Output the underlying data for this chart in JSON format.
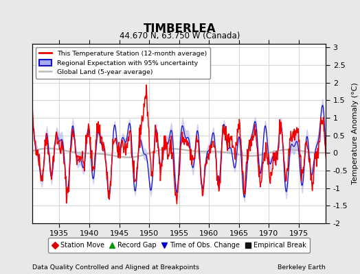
{
  "title": "TIMBERLEA",
  "subtitle": "44.670 N, 63.750 W (Canada)",
  "ylabel": "Temperature Anomaly (°C)",
  "xlabel_footer": "Data Quality Controlled and Aligned at Breakpoints",
  "footer_right": "Berkeley Earth",
  "ylim": [
    -2.0,
    3.1
  ],
  "xlim": [
    1930.5,
    1979.5
  ],
  "xticks": [
    1935,
    1940,
    1945,
    1950,
    1955,
    1960,
    1965,
    1970,
    1975
  ],
  "yticks": [
    -2,
    -1.5,
    -1,
    -0.5,
    0,
    0.5,
    1,
    1.5,
    2,
    2.5,
    3
  ],
  "bg_color": "#e8e8e8",
  "plot_bg_color": "#ffffff",
  "red_color": "#ee0000",
  "blue_color": "#1111cc",
  "blue_fill_color": "#aaaaee",
  "gray_color": "#bbbbbb",
  "marker_legend": [
    {
      "label": "Station Move",
      "marker": "D",
      "color": "#dd0000"
    },
    {
      "label": "Record Gap",
      "marker": "^",
      "color": "#009900"
    },
    {
      "label": "Time of Obs. Change",
      "marker": "v",
      "color": "#0000cc"
    },
    {
      "label": "Empirical Break",
      "marker": "s",
      "color": "#111111"
    }
  ],
  "seed": 12345
}
